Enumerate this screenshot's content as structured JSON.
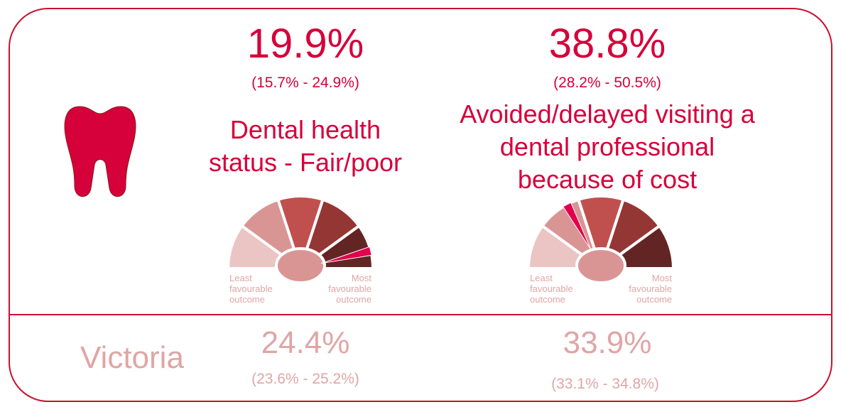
{
  "region": "Victoria",
  "indicators": [
    {
      "value": "19.9%",
      "ci": "(15.7% - 24.9%)",
      "label": [
        "Dental health",
        "status - Fair/poor"
      ],
      "gauge": {
        "left": [
          "Least",
          "favourable",
          "outcome"
        ],
        "right": [
          "Most",
          "favourable",
          "outcome"
        ]
      },
      "victoria": {
        "value": "24.4%",
        "ci": "(23.6% - 25.2%)"
      }
    },
    {
      "value": "38.8%",
      "ci": "(28.2% - 50.5%)",
      "label": [
        "Avoided/delayed visiting a",
        "dental professional",
        "because of cost"
      ],
      "gauge": {
        "left": [
          "Least",
          "favourable",
          "outcome"
        ],
        "right": [
          "Most",
          "favourable",
          "outcome"
        ]
      },
      "victoria": {
        "value": "33.9%",
        "ci": "(33.1% - 34.8%)"
      }
    }
  ]
}
